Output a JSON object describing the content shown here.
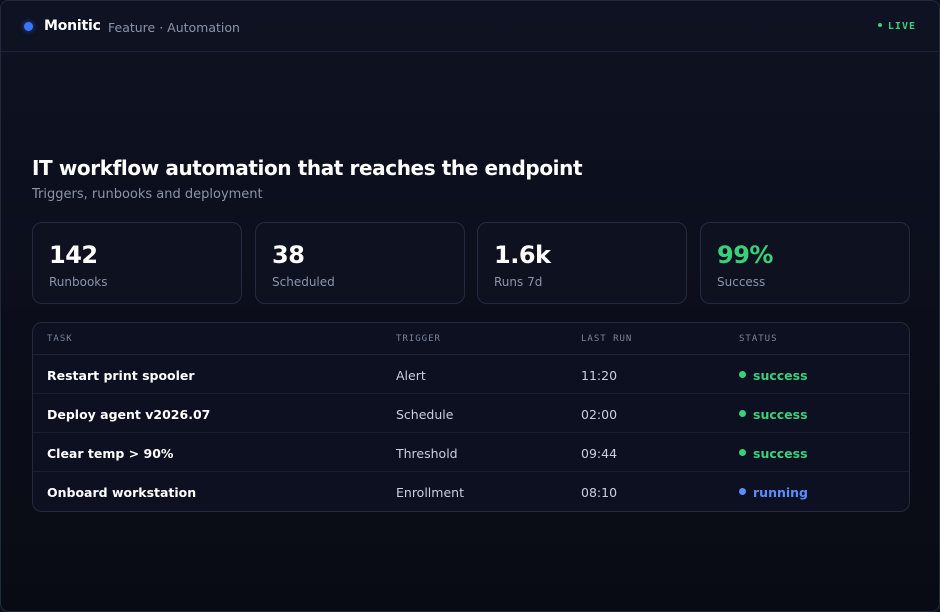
{
  "header": {
    "brand": "Monitic",
    "breadcrumb": "Feature · Automation",
    "live_label": "LIVE"
  },
  "hero": {
    "title": "IT workflow automation that reaches the endpoint",
    "subtitle": "Triggers, runbooks and deployment"
  },
  "stats": [
    {
      "value": "142",
      "label": "Runbooks",
      "highlight": false
    },
    {
      "value": "38",
      "label": "Scheduled",
      "highlight": false
    },
    {
      "value": "1.6k",
      "label": "Runs 7d",
      "highlight": false
    },
    {
      "value": "99%",
      "label": "Success",
      "highlight": true
    }
  ],
  "table": {
    "columns": [
      "TASK",
      "TRIGGER",
      "LAST RUN",
      "STATUS"
    ],
    "rows": [
      {
        "task": "Restart print spooler",
        "trigger": "Alert",
        "last_run": "11:20",
        "status": "success"
      },
      {
        "task": "Deploy agent v2026.07",
        "trigger": "Schedule",
        "last_run": "02:00",
        "status": "success"
      },
      {
        "task": "Clear temp > 90%",
        "trigger": "Threshold",
        "last_run": "09:44",
        "status": "success"
      },
      {
        "task": "Onboard workstation",
        "trigger": "Enrollment",
        "last_run": "08:10",
        "status": "running"
      }
    ]
  },
  "colors": {
    "accent": "#3b74ff",
    "success": "#3ad07a",
    "running": "#5b8cff",
    "background": "#0b0e1a"
  }
}
